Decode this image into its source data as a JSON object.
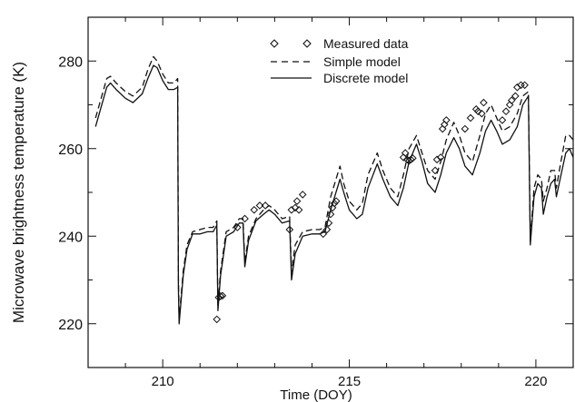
{
  "chart_data": {
    "type": "line",
    "xlabel": "Time (DOY)",
    "ylabel": "Microwave brightness temperature (K)",
    "xlim": [
      208.0,
      221.0
    ],
    "ylim": [
      210.0,
      290.0
    ],
    "xticks": [
      210,
      215,
      220
    ],
    "yticks": [
      220,
      240,
      260,
      280
    ],
    "grid": false,
    "legend_position": "top-center",
    "series": [
      {
        "name": "Measured data",
        "style": "diamond-markers",
        "points": [
          [
            211.45,
            221.0
          ],
          [
            211.5,
            226.0
          ],
          [
            211.55,
            226.3
          ],
          [
            211.6,
            226.4
          ],
          [
            212.0,
            242.0
          ],
          [
            212.2,
            244.0
          ],
          [
            212.45,
            246.0
          ],
          [
            212.6,
            247.0
          ],
          [
            212.75,
            247.0
          ],
          [
            213.4,
            241.5
          ],
          [
            213.45,
            246.0
          ],
          [
            213.55,
            246.5
          ],
          [
            213.6,
            248.0
          ],
          [
            213.65,
            246.0
          ],
          [
            213.75,
            249.5
          ],
          [
            214.3,
            240.5
          ],
          [
            214.4,
            241.5
          ],
          [
            214.45,
            243.0
          ],
          [
            214.5,
            245.0
          ],
          [
            214.55,
            246.5
          ],
          [
            214.6,
            247.5
          ],
          [
            214.65,
            248.0
          ],
          [
            216.45,
            258.0
          ],
          [
            216.5,
            259.0
          ],
          [
            216.55,
            257.5
          ],
          [
            216.6,
            257.2
          ],
          [
            216.65,
            257.5
          ],
          [
            216.7,
            257.8
          ],
          [
            217.3,
            255.0
          ],
          [
            217.35,
            257.5
          ],
          [
            217.45,
            258.0
          ],
          [
            217.5,
            264.5
          ],
          [
            217.55,
            265.5
          ],
          [
            217.6,
            266.5
          ],
          [
            218.1,
            264.5
          ],
          [
            218.25,
            267.0
          ],
          [
            218.4,
            269.0
          ],
          [
            218.45,
            268.5
          ],
          [
            218.55,
            268.0
          ],
          [
            218.6,
            270.5
          ],
          [
            219.1,
            266.5
          ],
          [
            219.2,
            268.5
          ],
          [
            219.3,
            270.0
          ],
          [
            219.35,
            271.0
          ],
          [
            219.45,
            272.0
          ],
          [
            219.5,
            274.0
          ],
          [
            219.6,
            274.5
          ],
          [
            219.7,
            274.5
          ]
        ]
      },
      {
        "name": "Simple model",
        "style": "dashed",
        "points": [
          [
            208.2,
            267.0
          ],
          [
            208.3,
            270.0
          ],
          [
            208.5,
            276.0
          ],
          [
            208.6,
            276.5
          ],
          [
            208.75,
            275.0
          ],
          [
            209.0,
            273.0
          ],
          [
            209.2,
            272.0
          ],
          [
            209.45,
            274.0
          ],
          [
            209.6,
            278.0
          ],
          [
            209.75,
            281.0
          ],
          [
            209.85,
            280.0
          ],
          [
            210.0,
            277.0
          ],
          [
            210.15,
            275.0
          ],
          [
            210.3,
            275.0
          ],
          [
            210.4,
            276.0
          ],
          [
            210.42,
            231.0
          ],
          [
            210.44,
            221.0
          ],
          [
            210.55,
            232.0
          ],
          [
            210.65,
            238.0
          ],
          [
            210.8,
            241.0
          ],
          [
            211.0,
            241.5
          ],
          [
            211.2,
            242.0
          ],
          [
            211.35,
            242.0
          ],
          [
            211.45,
            243.5
          ],
          [
            211.48,
            224.0
          ],
          [
            211.55,
            232.0
          ],
          [
            211.7,
            241.0
          ],
          [
            211.9,
            242.0
          ],
          [
            212.05,
            244.0
          ],
          [
            212.15,
            244.0
          ],
          [
            212.2,
            234.0
          ],
          [
            212.3,
            240.0
          ],
          [
            212.5,
            244.0
          ],
          [
            212.7,
            246.0
          ],
          [
            212.85,
            247.0
          ],
          [
            213.0,
            246.0
          ],
          [
            213.2,
            244.0
          ],
          [
            213.4,
            244.5
          ],
          [
            213.45,
            232.0
          ],
          [
            213.55,
            238.0
          ],
          [
            213.75,
            241.0
          ],
          [
            214.0,
            241.5
          ],
          [
            214.2,
            241.5
          ],
          [
            214.35,
            242.0
          ],
          [
            214.5,
            249.0
          ],
          [
            214.75,
            256.0
          ],
          [
            214.85,
            252.0
          ],
          [
            215.0,
            248.0
          ],
          [
            215.2,
            246.0
          ],
          [
            215.35,
            247.5
          ],
          [
            215.5,
            254.0
          ],
          [
            215.75,
            259.0
          ],
          [
            215.9,
            255.0
          ],
          [
            216.1,
            251.0
          ],
          [
            216.3,
            249.0
          ],
          [
            216.45,
            254.0
          ],
          [
            216.6,
            260.0
          ],
          [
            216.8,
            263.0
          ],
          [
            216.95,
            259.0
          ],
          [
            217.1,
            255.0
          ],
          [
            217.3,
            253.0
          ],
          [
            217.45,
            257.0
          ],
          [
            217.6,
            262.0
          ],
          [
            217.8,
            266.0
          ],
          [
            217.95,
            263.0
          ],
          [
            218.1,
            259.0
          ],
          [
            218.3,
            257.0
          ],
          [
            218.5,
            263.0
          ],
          [
            218.65,
            268.0
          ],
          [
            218.8,
            270.0
          ],
          [
            218.95,
            267.0
          ],
          [
            219.1,
            264.0
          ],
          [
            219.3,
            265.0
          ],
          [
            219.5,
            268.0
          ],
          [
            219.65,
            272.0
          ],
          [
            219.8,
            273.0
          ],
          [
            219.85,
            239.0
          ],
          [
            219.95,
            251.0
          ],
          [
            220.05,
            254.0
          ],
          [
            220.15,
            253.0
          ],
          [
            220.2,
            248.0
          ],
          [
            220.3,
            251.0
          ],
          [
            220.4,
            255.0
          ],
          [
            220.5,
            255.0
          ],
          [
            220.55,
            251.0
          ],
          [
            220.65,
            256.0
          ],
          [
            220.8,
            263.0
          ],
          [
            220.9,
            263.0
          ],
          [
            221.0,
            262.0
          ]
        ]
      },
      {
        "name": "Discrete model",
        "style": "solid",
        "points": [
          [
            208.2,
            265.0
          ],
          [
            208.3,
            268.0
          ],
          [
            208.5,
            274.0
          ],
          [
            208.6,
            275.0
          ],
          [
            208.75,
            273.5
          ],
          [
            209.0,
            271.5
          ],
          [
            209.2,
            270.5
          ],
          [
            209.45,
            272.5
          ],
          [
            209.6,
            276.0
          ],
          [
            209.75,
            279.0
          ],
          [
            209.85,
            278.5
          ],
          [
            210.0,
            275.5
          ],
          [
            210.15,
            273.5
          ],
          [
            210.3,
            273.5
          ],
          [
            210.4,
            274.0
          ],
          [
            210.42,
            228.0
          ],
          [
            210.44,
            220.0
          ],
          [
            210.55,
            231.0
          ],
          [
            210.65,
            237.0
          ],
          [
            210.8,
            240.5
          ],
          [
            211.0,
            240.5
          ],
          [
            211.2,
            241.0
          ],
          [
            211.35,
            241.0
          ],
          [
            211.45,
            242.5
          ],
          [
            211.48,
            223.0
          ],
          [
            211.55,
            231.0
          ],
          [
            211.7,
            240.0
          ],
          [
            211.9,
            241.0
          ],
          [
            212.05,
            243.0
          ],
          [
            212.15,
            243.0
          ],
          [
            212.2,
            233.0
          ],
          [
            212.3,
            239.0
          ],
          [
            212.5,
            243.5
          ],
          [
            212.7,
            245.0
          ],
          [
            212.85,
            246.0
          ],
          [
            213.0,
            245.0
          ],
          [
            213.2,
            243.0
          ],
          [
            213.4,
            243.5
          ],
          [
            213.45,
            230.0
          ],
          [
            213.55,
            236.0
          ],
          [
            213.75,
            240.0
          ],
          [
            214.0,
            240.5
          ],
          [
            214.2,
            240.5
          ],
          [
            214.35,
            241.0
          ],
          [
            214.5,
            246.0
          ],
          [
            214.75,
            253.0
          ],
          [
            214.85,
            250.0
          ],
          [
            215.0,
            246.0
          ],
          [
            215.2,
            244.0
          ],
          [
            215.35,
            245.0
          ],
          [
            215.5,
            251.0
          ],
          [
            215.75,
            256.5
          ],
          [
            215.9,
            253.0
          ],
          [
            216.1,
            249.0
          ],
          [
            216.3,
            247.0
          ],
          [
            216.45,
            251.0
          ],
          [
            216.6,
            257.0
          ],
          [
            216.8,
            261.0
          ],
          [
            216.95,
            257.0
          ],
          [
            217.1,
            252.0
          ],
          [
            217.3,
            250.0
          ],
          [
            217.45,
            254.0
          ],
          [
            217.6,
            259.0
          ],
          [
            217.8,
            262.5
          ],
          [
            217.95,
            260.0
          ],
          [
            218.1,
            256.0
          ],
          [
            218.3,
            254.0
          ],
          [
            218.5,
            259.0
          ],
          [
            218.65,
            264.0
          ],
          [
            218.8,
            266.5
          ],
          [
            218.95,
            264.0
          ],
          [
            219.1,
            261.0
          ],
          [
            219.3,
            262.0
          ],
          [
            219.5,
            265.0
          ],
          [
            219.65,
            270.0
          ],
          [
            219.8,
            272.0
          ],
          [
            219.85,
            238.0
          ],
          [
            219.95,
            249.0
          ],
          [
            220.05,
            252.0
          ],
          [
            220.15,
            251.0
          ],
          [
            220.2,
            245.0
          ],
          [
            220.3,
            249.0
          ],
          [
            220.4,
            252.0
          ],
          [
            220.5,
            253.0
          ],
          [
            220.55,
            249.0
          ],
          [
            220.65,
            253.0
          ],
          [
            220.8,
            259.0
          ],
          [
            220.9,
            260.0
          ],
          [
            221.0,
            258.0
          ]
        ]
      }
    ]
  },
  "colors": {
    "ink": "#111111",
    "background": "#ffffff"
  }
}
